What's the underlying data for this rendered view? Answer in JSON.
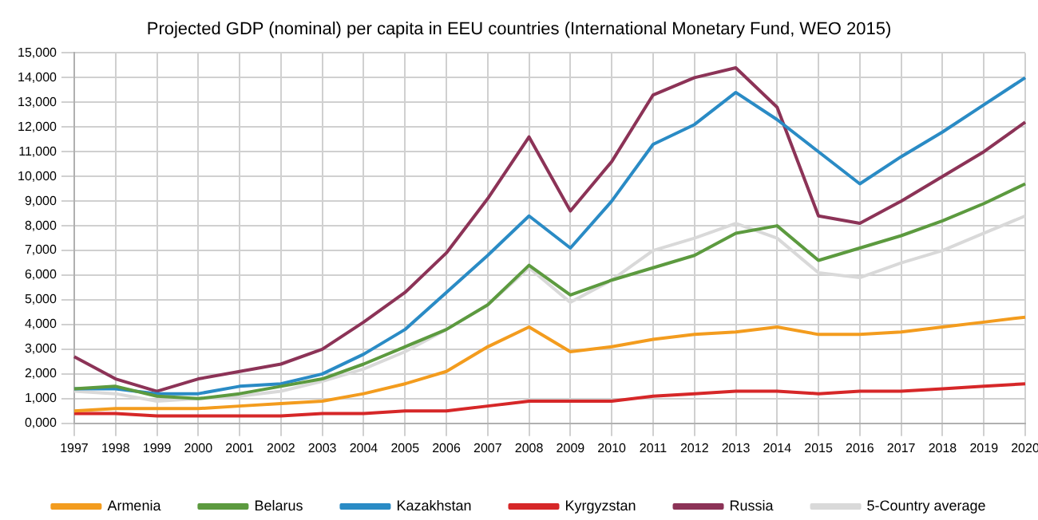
{
  "chart_data": {
    "type": "line",
    "title": "Projected GDP (nominal) per capita in EEU countries (International Monetary Fund, WEO 2015)",
    "categories": [
      "1997",
      "1998",
      "1999",
      "2000",
      "2001",
      "2002",
      "2003",
      "2004",
      "2005",
      "2006",
      "2007",
      "2008",
      "2009",
      "2010",
      "2011",
      "2012",
      "2013",
      "2014",
      "2015",
      "2016",
      "2017",
      "2018",
      "2019",
      "2020"
    ],
    "series": [
      {
        "name": "Armenia",
        "color": "#f39c1e",
        "values": [
          500,
          600,
          600,
          600,
          700,
          800,
          900,
          1200,
          1600,
          2100,
          3100,
          3900,
          2900,
          3100,
          3400,
          3600,
          3700,
          3900,
          3600,
          3600,
          3700,
          3900,
          4100,
          4300
        ]
      },
      {
        "name": "Belarus",
        "color": "#5c9a3f",
        "values": [
          1400,
          1500,
          1100,
          1000,
          1200,
          1500,
          1800,
          2400,
          3100,
          3800,
          4800,
          6400,
          5200,
          5800,
          6300,
          6800,
          7700,
          8000,
          6600,
          7100,
          7600,
          8200,
          8900,
          9700
        ]
      },
      {
        "name": "Kazakhstan",
        "color": "#2a8bc5",
        "values": [
          1400,
          1400,
          1200,
          1200,
          1500,
          1600,
          2000,
          2800,
          3800,
          5300,
          6800,
          8400,
          7100,
          9000,
          11300,
          12100,
          13400,
          12300,
          11000,
          9700,
          10800,
          11800,
          12900,
          14000
        ]
      },
      {
        "name": "Kyrgyzstan",
        "color": "#d62728",
        "values": [
          400,
          400,
          300,
          300,
          300,
          300,
          400,
          400,
          500,
          500,
          700,
          900,
          900,
          900,
          1100,
          1200,
          1300,
          1300,
          1200,
          1300,
          1300,
          1400,
          1500,
          1600
        ]
      },
      {
        "name": "Russia",
        "color": "#8c3357",
        "values": [
          2700,
          1800,
          1300,
          1800,
          2100,
          2400,
          3000,
          4100,
          5300,
          6900,
          9100,
          11600,
          8600,
          10600,
          13300,
          14000,
          14400,
          12800,
          8400,
          8100,
          9000,
          10000,
          11000,
          12200
        ]
      },
      {
        "name": "5-Country average",
        "color": "#d9d9d9",
        "values": [
          1300,
          1200,
          900,
          1000,
          1100,
          1300,
          1700,
          2200,
          2900,
          3800,
          4800,
          6300,
          4900,
          5800,
          7000,
          7500,
          8100,
          7500,
          6100,
          5900,
          6500,
          7000,
          7700,
          8400
        ]
      }
    ],
    "ylim": [
      0,
      15000
    ],
    "yticks": [
      {
        "value": 0,
        "label": "0,000"
      },
      {
        "value": 1000,
        "label": "1,000"
      },
      {
        "value": 2000,
        "label": "2,000"
      },
      {
        "value": 3000,
        "label": "3,000"
      },
      {
        "value": 4000,
        "label": "4,000"
      },
      {
        "value": 5000,
        "label": "5,000"
      },
      {
        "value": 6000,
        "label": "6,000"
      },
      {
        "value": 7000,
        "label": "7,000"
      },
      {
        "value": 8000,
        "label": "8,000"
      },
      {
        "value": 9000,
        "label": "9,000"
      },
      {
        "value": 10000,
        "label": "10,000"
      },
      {
        "value": 11000,
        "label": "11,000"
      },
      {
        "value": 12000,
        "label": "12,000"
      },
      {
        "value": 13000,
        "label": "13,000"
      },
      {
        "value": 14000,
        "label": "14,000"
      },
      {
        "value": 15000,
        "label": "15,000"
      }
    ],
    "grid": true,
    "legend": "bottom",
    "marker": "none",
    "line_style": "solid"
  }
}
